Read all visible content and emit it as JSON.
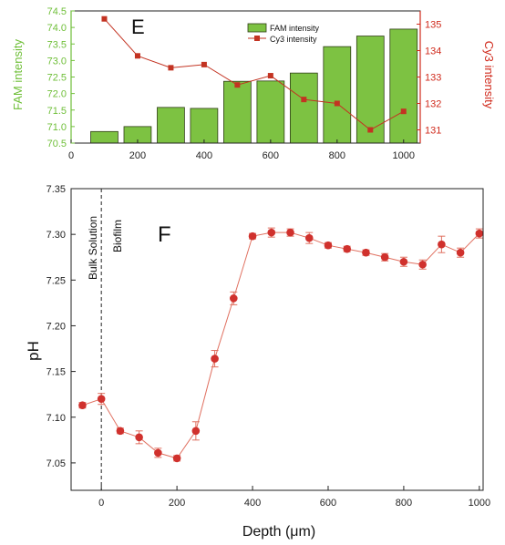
{
  "chart_data": [
    {
      "panel_label": "E",
      "type": "bar",
      "xlabel": "",
      "ylabel_left": "FAM intensity",
      "ylabel_right": "Cy3 intensity",
      "xlim": [
        0,
        1050
      ],
      "ylim_left": [
        70.5,
        74.5
      ],
      "ylim_right": [
        130.5,
        135.5
      ],
      "x_ticks": [
        0,
        200,
        400,
        600,
        800,
        1000
      ],
      "y_left_ticks": [
        "70.5",
        "71.0",
        "71.5",
        "72.0",
        "72.5",
        "73.0",
        "73.5",
        "74.0",
        "74.5"
      ],
      "y_right_ticks": [
        "131",
        "132",
        "133",
        "134",
        "135"
      ],
      "legend_position": "top-right",
      "colors": {
        "bar": "#7dc242",
        "bar_edge": "#2f3d16",
        "line": "#c33322",
        "left_axis": "#6fbf38",
        "right_axis": "#d02a1c"
      },
      "series": [
        {
          "name": "FAM intensity",
          "type": "bar",
          "axis": "left",
          "x": [
            100,
            200,
            300,
            400,
            500,
            600,
            700,
            800,
            900,
            1000
          ],
          "values": [
            70.85,
            71.0,
            71.58,
            71.55,
            72.37,
            72.38,
            72.62,
            73.42,
            73.74,
            73.95
          ]
        },
        {
          "name": "Cy3 intensity",
          "type": "line",
          "axis": "right",
          "x": [
            100,
            200,
            300,
            400,
            500,
            600,
            700,
            800,
            900,
            1000
          ],
          "values": [
            135.2,
            133.8,
            133.35,
            133.47,
            132.7,
            133.05,
            132.15,
            132.0,
            131.0,
            131.7
          ]
        }
      ]
    },
    {
      "panel_label": "F",
      "type": "scatter",
      "xlabel": "Depth (μm)",
      "ylabel": "pH",
      "xlim": [
        -80,
        1010
      ],
      "ylim": [
        7.02,
        7.35
      ],
      "x_ticks": [
        0,
        200,
        400,
        600,
        800,
        1000
      ],
      "y_ticks": [
        "7.05",
        "7.10",
        "7.15",
        "7.20",
        "7.25",
        "7.30",
        "7.35"
      ],
      "annotations": [
        "Bulk Solution",
        "Biofilm"
      ],
      "divider_x": 0,
      "colors": {
        "marker": "#d0312d",
        "line": "#e07060"
      },
      "series": [
        {
          "x": [
            -50,
            0,
            50,
            100,
            150,
            200,
            250,
            300,
            350,
            400,
            450,
            500,
            550,
            600,
            650,
            700,
            750,
            800,
            850,
            900,
            950,
            1000
          ],
          "y": [
            7.113,
            7.12,
            7.085,
            7.078,
            7.061,
            7.055,
            7.085,
            7.164,
            7.23,
            7.298,
            7.302,
            7.302,
            7.296,
            7.288,
            7.284,
            7.28,
            7.275,
            7.27,
            7.267,
            7.289,
            7.28,
            7.301
          ],
          "error": [
            0.003,
            0.006,
            0.003,
            0.007,
            0.005,
            0.003,
            0.01,
            0.009,
            0.007,
            0.003,
            0.005,
            0.004,
            0.006,
            0.003,
            0.003,
            0.003,
            0.004,
            0.005,
            0.005,
            0.009,
            0.005,
            0.005
          ]
        }
      ]
    }
  ]
}
